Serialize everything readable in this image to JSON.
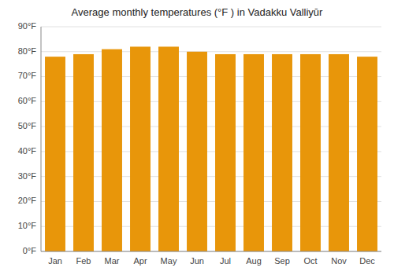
{
  "chart_data": {
    "type": "bar",
    "title": "Average monthly temperatures (°F ) in Vadakku Valliyūr",
    "categories": [
      "Jan",
      "Feb",
      "Mar",
      "Apr",
      "May",
      "Jun",
      "Jul",
      "Aug",
      "Sep",
      "Oct",
      "Nov",
      "Dec"
    ],
    "values": [
      78,
      79,
      81,
      82,
      82,
      80,
      79,
      79,
      79,
      79,
      79,
      78
    ],
    "color": "#E8960A",
    "ylim": [
      0,
      90
    ],
    "yticks": [
      {
        "value": 0,
        "label": "0°F"
      },
      {
        "value": 10,
        "label": "10°F"
      },
      {
        "value": 20,
        "label": "20°F"
      },
      {
        "value": 30,
        "label": "30°F"
      },
      {
        "value": 40,
        "label": "40°F"
      },
      {
        "value": 50,
        "label": "50°F"
      },
      {
        "value": 60,
        "label": "60°F"
      },
      {
        "value": 70,
        "label": "70°F"
      },
      {
        "value": 80,
        "label": "80°F"
      },
      {
        "value": 90,
        "label": "90°F"
      }
    ],
    "grid": true
  }
}
